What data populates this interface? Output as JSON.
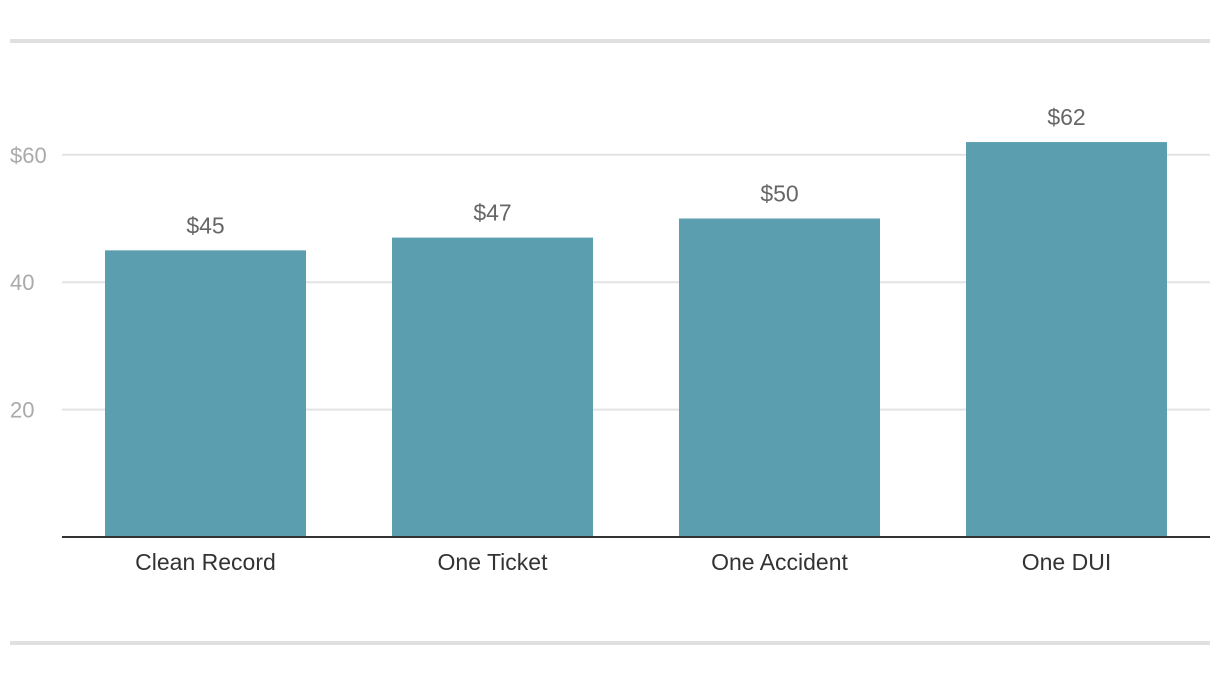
{
  "chart_data": {
    "type": "bar",
    "categories": [
      "Clean Record",
      "One Ticket",
      "One Accident",
      "One DUI"
    ],
    "values": [
      45,
      47,
      50,
      62
    ],
    "value_labels": [
      "$45",
      "$47",
      "$50",
      "$62"
    ],
    "y_ticks": [
      {
        "value": 20,
        "label": "20"
      },
      {
        "value": 40,
        "label": "40"
      },
      {
        "value": 60,
        "label": "$60"
      }
    ],
    "ylim": [
      0,
      70
    ],
    "grid": true,
    "bar_color": "#5b9eaf"
  }
}
